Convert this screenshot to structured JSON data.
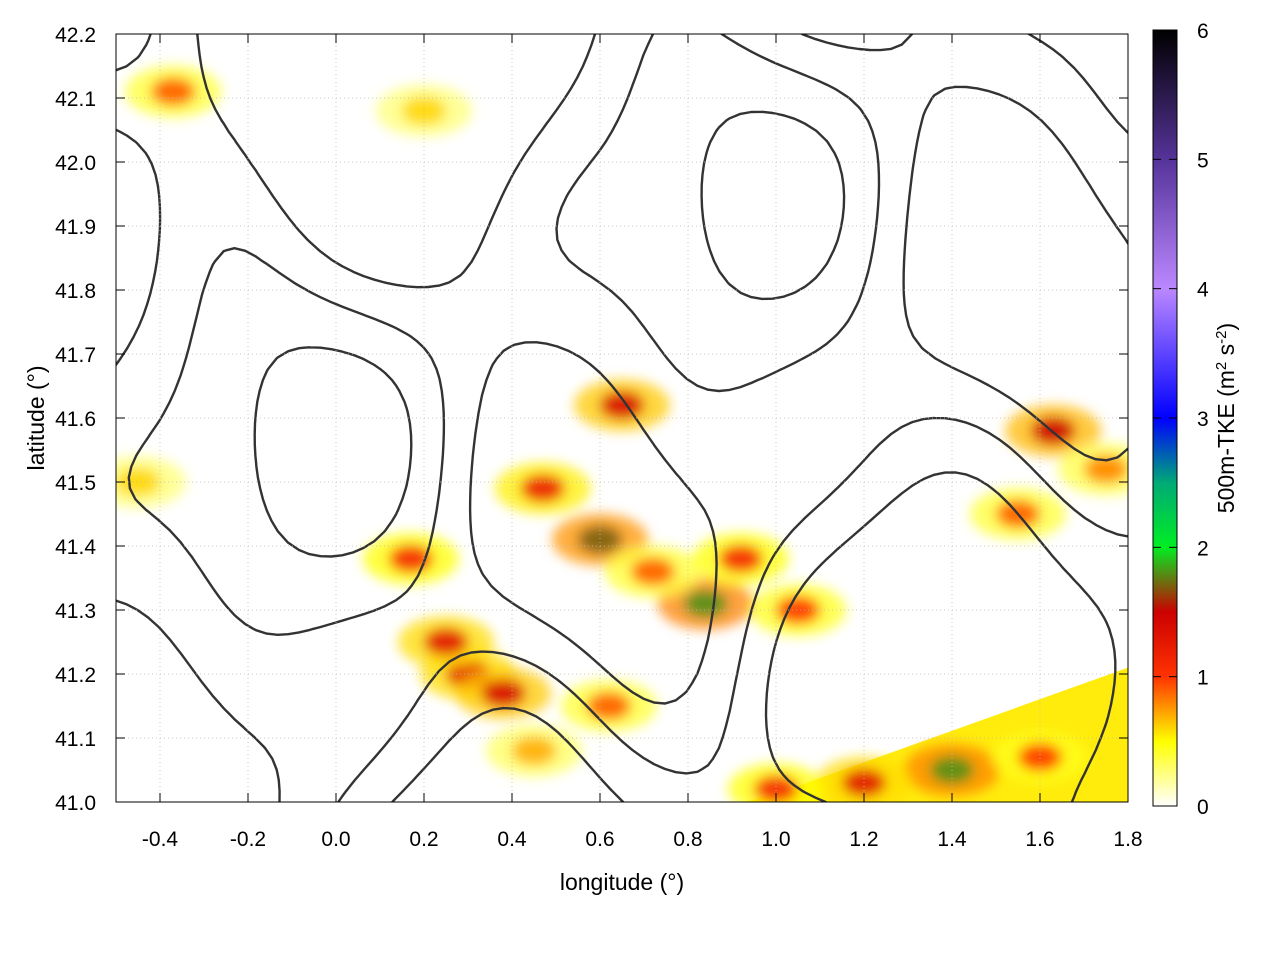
{
  "chart_data": {
    "type": "heatmap",
    "title": "",
    "xlabel": "longitude (°)",
    "ylabel": "latitude (°)",
    "xlim": [
      -0.5,
      1.8
    ],
    "ylim": [
      41.0,
      42.2
    ],
    "x_ticks": [
      -0.4,
      -0.2,
      0.0,
      0.2,
      0.4,
      0.6,
      0.8,
      1.0,
      1.2,
      1.4,
      1.6,
      1.8
    ],
    "x_tick_labels": [
      "-0.4",
      "-0.2",
      "0.0",
      "0.2",
      "0.4",
      "0.6",
      "0.8",
      "1.0",
      "1.2",
      "1.4",
      "1.6",
      "1.8"
    ],
    "y_ticks": [
      41.0,
      41.1,
      41.2,
      41.3,
      41.4,
      41.5,
      41.6,
      41.7,
      41.8,
      41.9,
      42.0,
      42.1,
      42.2
    ],
    "y_tick_labels": [
      "41.0",
      "41.1",
      "41.2",
      "41.3",
      "41.4",
      "41.5",
      "41.6",
      "41.7",
      "41.8",
      "41.9",
      "42.0",
      "42.1",
      "42.2"
    ],
    "grid": true,
    "colorbar": {
      "label_main": "500m-TKE (m",
      "label_sup1": "2",
      "label_mid": " s",
      "label_sup2": "-2",
      "label_end": ")",
      "range": [
        0,
        6
      ],
      "ticks": [
        0,
        1,
        2,
        3,
        4,
        5,
        6
      ],
      "tick_labels": [
        "0",
        "1",
        "2",
        "3",
        "4",
        "5",
        "6"
      ],
      "stops": [
        {
          "value": 0.0,
          "color": "#ffffff"
        },
        {
          "value": 0.5,
          "color": "#ffff00"
        },
        {
          "value": 1.0,
          "color": "#ff3300"
        },
        {
          "value": 1.5,
          "color": "#cc0000"
        },
        {
          "value": 2.0,
          "color": "#00ee22"
        },
        {
          "value": 2.5,
          "color": "#00aa77"
        },
        {
          "value": 3.0,
          "color": "#0000ff"
        },
        {
          "value": 4.0,
          "color": "#bb88ff"
        },
        {
          "value": 5.0,
          "color": "#553399"
        },
        {
          "value": 6.0,
          "color": "#000000"
        }
      ]
    },
    "contour_color": "#333333",
    "tke_hotspots": [
      {
        "lon": 0.65,
        "lat": 41.62,
        "tke": 1.4
      },
      {
        "lon": 0.47,
        "lat": 41.49,
        "tke": 1.2
      },
      {
        "lon": 0.6,
        "lat": 41.41,
        "tke": 1.7
      },
      {
        "lon": 0.84,
        "lat": 41.31,
        "tke": 1.8
      },
      {
        "lon": 0.72,
        "lat": 41.36,
        "tke": 0.9
      },
      {
        "lon": 0.92,
        "lat": 41.38,
        "tke": 1.1
      },
      {
        "lon": 1.05,
        "lat": 41.3,
        "tke": 1.0
      },
      {
        "lon": 0.3,
        "lat": 41.2,
        "tke": 1.3
      },
      {
        "lon": 0.38,
        "lat": 41.17,
        "tke": 1.4
      },
      {
        "lon": 0.17,
        "lat": 41.38,
        "tke": 1.1
      },
      {
        "lon": 0.25,
        "lat": 41.25,
        "tke": 1.3
      },
      {
        "lon": -0.37,
        "lat": 42.11,
        "tke": 0.9
      },
      {
        "lon": 0.2,
        "lat": 42.08,
        "tke": 0.6
      },
      {
        "lon": 1.63,
        "lat": 41.58,
        "tke": 1.5
      },
      {
        "lon": 1.55,
        "lat": 41.45,
        "tke": 0.9
      },
      {
        "lon": 1.75,
        "lat": 41.52,
        "tke": 0.8
      },
      {
        "lon": -0.45,
        "lat": 41.5,
        "tke": 0.6
      },
      {
        "lon": 0.62,
        "lat": 41.15,
        "tke": 0.9
      },
      {
        "lon": 0.45,
        "lat": 41.08,
        "tke": 0.7
      },
      {
        "lon": 1.4,
        "lat": 41.05,
        "tke": 1.8
      },
      {
        "lon": 1.2,
        "lat": 41.03,
        "tke": 1.3
      },
      {
        "lon": 1.0,
        "lat": 41.02,
        "tke": 1.1
      },
      {
        "lon": 1.6,
        "lat": 41.07,
        "tke": 1.0
      }
    ],
    "coastal_band": {
      "lon": [
        0.93,
        1.8
      ],
      "lat_top_at_lon_start": 41.0,
      "lat_top_at_lon_end": 41.21,
      "tke": 0.55
    }
  }
}
